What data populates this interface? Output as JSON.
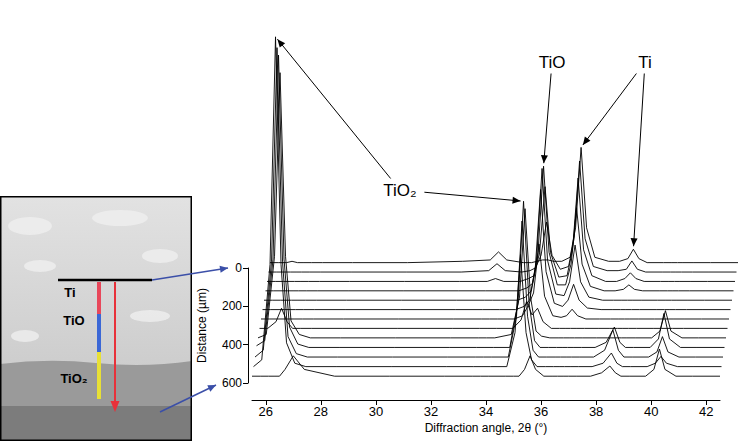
{
  "chart_data": {
    "type": "line",
    "x_label": "Diffraction angle, 2θ (°)",
    "xlim": [
      25.5,
      42.5
    ],
    "xticks": [
      26,
      28,
      30,
      32,
      34,
      36,
      38,
      40,
      42
    ],
    "ylim": [
      0,
      100
    ],
    "tick_labels": "x",
    "color": "#000000",
    "distance_axis": {
      "label": "Distance (µm)",
      "lim": [
        0,
        600
      ],
      "ticks": [
        0,
        200,
        400,
        600
      ]
    },
    "x": [
      25.5,
      25.8,
      26.1,
      26.3,
      26.5,
      26.7,
      27.0,
      27.4,
      28.5,
      30.5,
      32.5,
      33.5,
      33.8,
      34.1,
      34.7,
      35.0,
      35.2,
      35.4,
      35.6,
      35.8,
      36.1,
      36.4,
      36.6,
      36.8,
      37.0,
      37.3,
      37.8,
      38.2,
      38.5,
      38.7,
      38.9,
      39.2,
      39.8,
      40.1,
      40.3,
      40.5,
      40.9,
      41.5,
      42.5
    ],
    "series": [
      {
        "distance": 0,
        "values": [
          2,
          2,
          2,
          2.5,
          2,
          2,
          2,
          2,
          2,
          2,
          2.5,
          3,
          6,
          3,
          2,
          2,
          2.5,
          3,
          3,
          2.5,
          2.5,
          4,
          15,
          45,
          15,
          4,
          2.5,
          2.5,
          3.5,
          7,
          3.5,
          2,
          2,
          2,
          2,
          2,
          2,
          2,
          2
        ]
      },
      {
        "distance": 50,
        "values": [
          2,
          2,
          2,
          2,
          2,
          2,
          2,
          2,
          2,
          2,
          2,
          2.5,
          5,
          2.5,
          2,
          2.5,
          3.5,
          8,
          20,
          8,
          3,
          4,
          14,
          42,
          14,
          4,
          2.5,
          2.5,
          3,
          6,
          3,
          2,
          2,
          2,
          2,
          2,
          2,
          2,
          2
        ]
      },
      {
        "distance": 100,
        "values": [
          2,
          2,
          2,
          2,
          2,
          2,
          2,
          2,
          2,
          2,
          2,
          2,
          3,
          2,
          2,
          3,
          4,
          12,
          35,
          12,
          3.5,
          4,
          13,
          38,
          13,
          4,
          2,
          2,
          3,
          5,
          3,
          2,
          2,
          2,
          2,
          2,
          2,
          2,
          2
        ]
      },
      {
        "distance": 150,
        "values": [
          2,
          2,
          2,
          2,
          2,
          2,
          2,
          2,
          2,
          2,
          2,
          2,
          2,
          2,
          2,
          3,
          4.5,
          15,
          44,
          15,
          4,
          4,
          11,
          30,
          11,
          3.5,
          2,
          2,
          2.5,
          4,
          2.5,
          2,
          2,
          2,
          2,
          2,
          2,
          2,
          2
        ]
      },
      {
        "distance": 200,
        "values": [
          2,
          2,
          2,
          2,
          2,
          2,
          2,
          2,
          2,
          2,
          2,
          2,
          2,
          2,
          2,
          3,
          5,
          15,
          45,
          15,
          4,
          3.5,
          8,
          20,
          8,
          3,
          2,
          2,
          2,
          2,
          2,
          2,
          2,
          2,
          2,
          2,
          2,
          2,
          2
        ]
      },
      {
        "distance": 250,
        "values": [
          2,
          2,
          2,
          2,
          2,
          2,
          2,
          2,
          2,
          2,
          2,
          2,
          2,
          2,
          2,
          3,
          5,
          14,
          40,
          14,
          4,
          3,
          5,
          10,
          5,
          2.5,
          2,
          2,
          2,
          2,
          2,
          2,
          2,
          2,
          2,
          2,
          2,
          2,
          2
        ]
      },
      {
        "distance": 300,
        "values": [
          2,
          2,
          2,
          2,
          2,
          2,
          2,
          2,
          2,
          2,
          2,
          2,
          2,
          2,
          2,
          3,
          6,
          10,
          25,
          9,
          3,
          2.5,
          3,
          5,
          3,
          2,
          2,
          2,
          2,
          2,
          2,
          2,
          2,
          2,
          2,
          2,
          2,
          2,
          2
        ]
      },
      {
        "distance": 350,
        "values": [
          2,
          2,
          4,
          8,
          4,
          2,
          2,
          2,
          2,
          2,
          2,
          2,
          2,
          2,
          2,
          4.5,
          10,
          6,
          8,
          4,
          2,
          2,
          2,
          2,
          2,
          2,
          2,
          2,
          2,
          2,
          2,
          2,
          2,
          2,
          2,
          2,
          2,
          2,
          2
        ]
      },
      {
        "distance": 400,
        "values": [
          2,
          3,
          26,
          80,
          26,
          7,
          3,
          2,
          2,
          2,
          2,
          2,
          2,
          2,
          3,
          14,
          40,
          14,
          4,
          2.5,
          2,
          2,
          2,
          2,
          2,
          2,
          2,
          2,
          2,
          2,
          2,
          2,
          2,
          4,
          10,
          4,
          2,
          2,
          2
        ]
      },
      {
        "distance": 450,
        "values": [
          2.5,
          4,
          28,
          88,
          28,
          8,
          3,
          2,
          2,
          2,
          2,
          2,
          2,
          2,
          2,
          15,
          45,
          15,
          4,
          2,
          2,
          2,
          2,
          2,
          2,
          2,
          2,
          3.5,
          8,
          3.5,
          2,
          2,
          2,
          4.5,
          12,
          4.5,
          2,
          2,
          2
        ]
      },
      {
        "distance": 500,
        "values": [
          2,
          4,
          30,
          93,
          30,
          8,
          3,
          2,
          2,
          2,
          2,
          2,
          2,
          2,
          2,
          14,
          42,
          14,
          4,
          2,
          2,
          2,
          2,
          2,
          2,
          2,
          2,
          4,
          10,
          4,
          2,
          2,
          2,
          3.5,
          8,
          3.5,
          2,
          2,
          2
        ]
      },
      {
        "distance": 550,
        "values": [
          2,
          4,
          32,
          99,
          32,
          9,
          3,
          2,
          2,
          2,
          2,
          2,
          2,
          2,
          2,
          12,
          35,
          12,
          4,
          2,
          2,
          2,
          2,
          2,
          2,
          2,
          2,
          3,
          6,
          3,
          2,
          2,
          2,
          3,
          5,
          3,
          2,
          2,
          2
        ]
      },
      {
        "distance": 600,
        "values": [
          2,
          2,
          2,
          2,
          2,
          4,
          8,
          4,
          2,
          2,
          2,
          2,
          2,
          2,
          2,
          2,
          2,
          4,
          8,
          4,
          2,
          2,
          2,
          2,
          2,
          2,
          2,
          3,
          5,
          3,
          2,
          2,
          2,
          4,
          10,
          4,
          2,
          2,
          2
        ]
      }
    ],
    "annotations": [
      {
        "text": "TiO₂",
        "points": [
          [
            26.3,
            550
          ],
          [
            35.2,
            450
          ]
        ]
      },
      {
        "text": "TiO",
        "points": [
          [
            35.6,
            150
          ]
        ]
      },
      {
        "text": "Ti",
        "points": [
          [
            36.8,
            0
          ],
          [
            38.7,
            0
          ]
        ]
      }
    ]
  },
  "inset": {
    "labels": [
      "Ti",
      "TiO",
      "TiO₂"
    ]
  }
}
